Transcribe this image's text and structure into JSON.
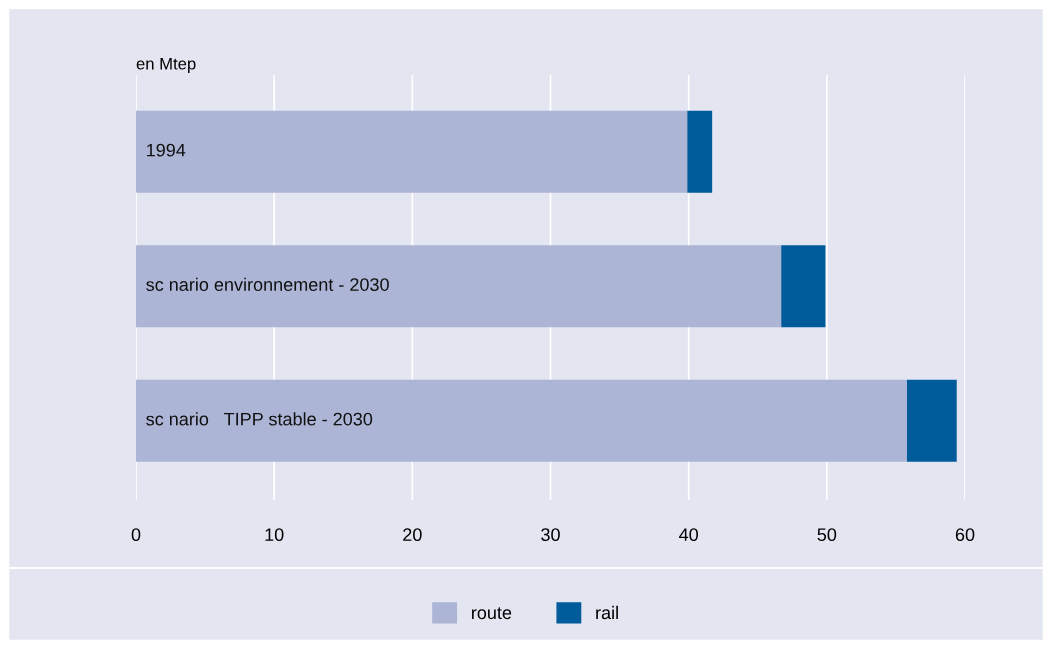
{
  "chart_data": {
    "type": "bar",
    "orientation": "horizontal",
    "stacked": true,
    "xlabel": "en Mtep",
    "categories": [
      "1994",
      "sc nario environnement - 2030",
      "sc nario   TIPP stable - 2030"
    ],
    "series": [
      {
        "name": "route",
        "color": "#adb5d6",
        "values": [
          39.9,
          46.7,
          55.8
        ]
      },
      {
        "name": "rail",
        "color": "#005b9a",
        "values": [
          1.8,
          3.2,
          3.6
        ]
      }
    ],
    "xlim": [
      0,
      60
    ],
    "xticks": [
      0,
      10,
      20,
      30,
      40,
      50,
      60
    ],
    "grid": "x",
    "legend": "bottom"
  }
}
